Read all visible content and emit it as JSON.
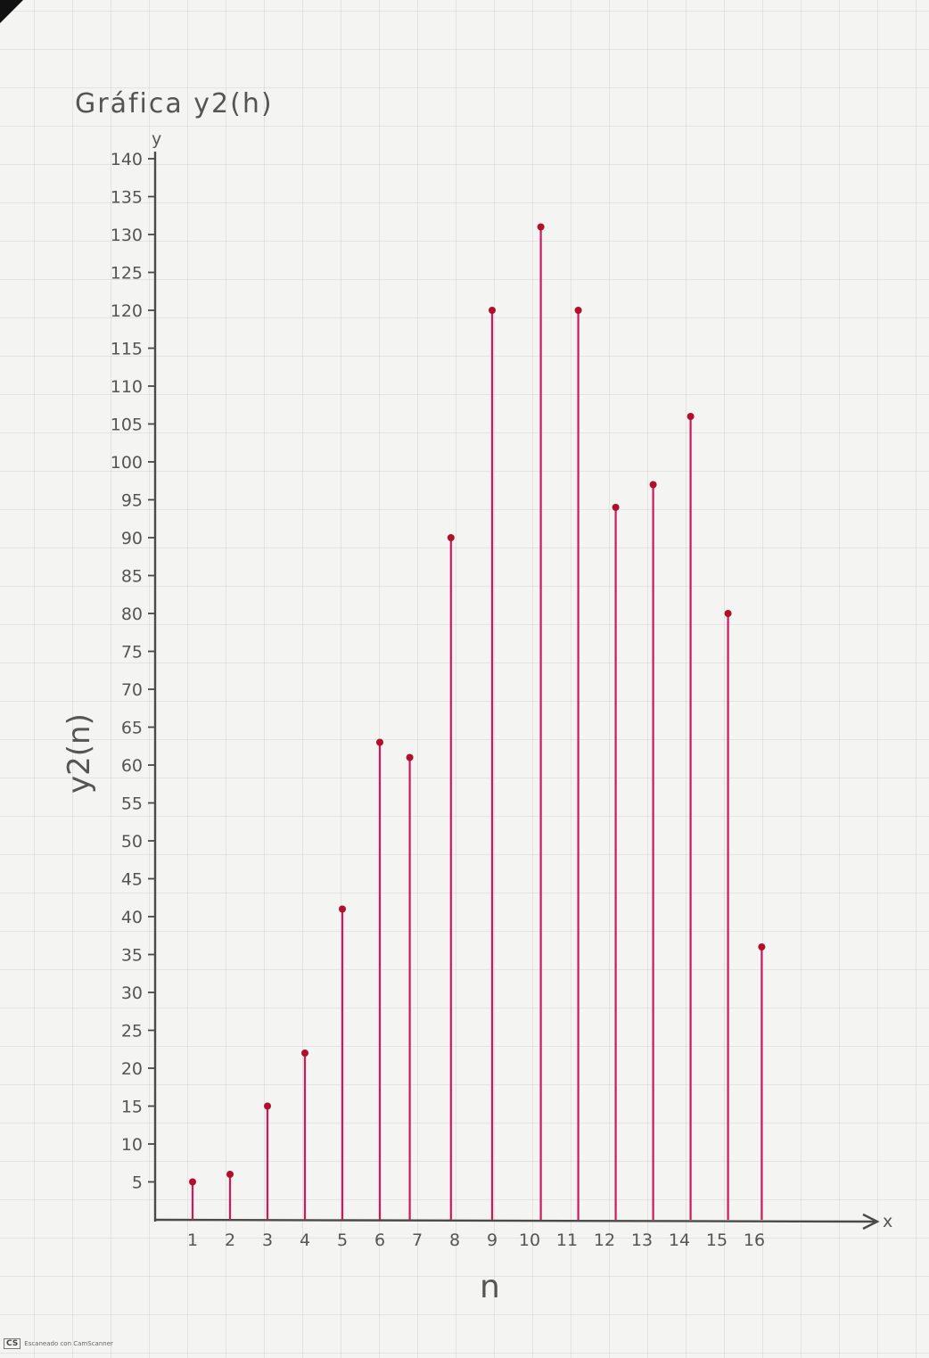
{
  "chart_data": {
    "type": "stem",
    "title": "Gráfica y2(h)",
    "xlabel": "n",
    "ylabel": "y2(n)",
    "x_axis_arrow_label": "x",
    "y_axis_arrow_label": "y",
    "x_tick_labels": [
      "1",
      "2",
      "3",
      "4",
      "5",
      "6",
      "7",
      "8",
      "9",
      "10",
      "11",
      "12",
      "13",
      "14",
      "15",
      "16"
    ],
    "y_tick_labels": [
      "5",
      "10",
      "15",
      "20",
      "25",
      "30",
      "35",
      "40",
      "45",
      "50",
      "55",
      "60",
      "65",
      "70",
      "75",
      "80",
      "85",
      "90",
      "95",
      "100",
      "105",
      "110",
      "115",
      "120",
      "125",
      "130",
      "135",
      "140"
    ],
    "ylim": [
      0,
      140
    ],
    "points": [
      {
        "x": 1,
        "y": 5
      },
      {
        "x": 2,
        "y": 6
      },
      {
        "x": 3,
        "y": 15
      },
      {
        "x": 4,
        "y": 22
      },
      {
        "x": 5,
        "y": 41
      },
      {
        "x": 6,
        "y": 63
      },
      {
        "x": 6.8,
        "y": 61
      },
      {
        "x": 7.9,
        "y": 90
      },
      {
        "x": 9,
        "y": 120
      },
      {
        "x": 10.3,
        "y": 131
      },
      {
        "x": 11.3,
        "y": 120
      },
      {
        "x": 12.3,
        "y": 94
      },
      {
        "x": 13.3,
        "y": 97
      },
      {
        "x": 14.3,
        "y": 106
      },
      {
        "x": 15.3,
        "y": 80
      },
      {
        "x": 16.2,
        "y": 36
      }
    ],
    "grid": true,
    "stem_color": "#d01860",
    "marker_color": "#b0102a"
  },
  "footer": {
    "logo": "CS",
    "text": "Escaneado con CamScanner"
  }
}
